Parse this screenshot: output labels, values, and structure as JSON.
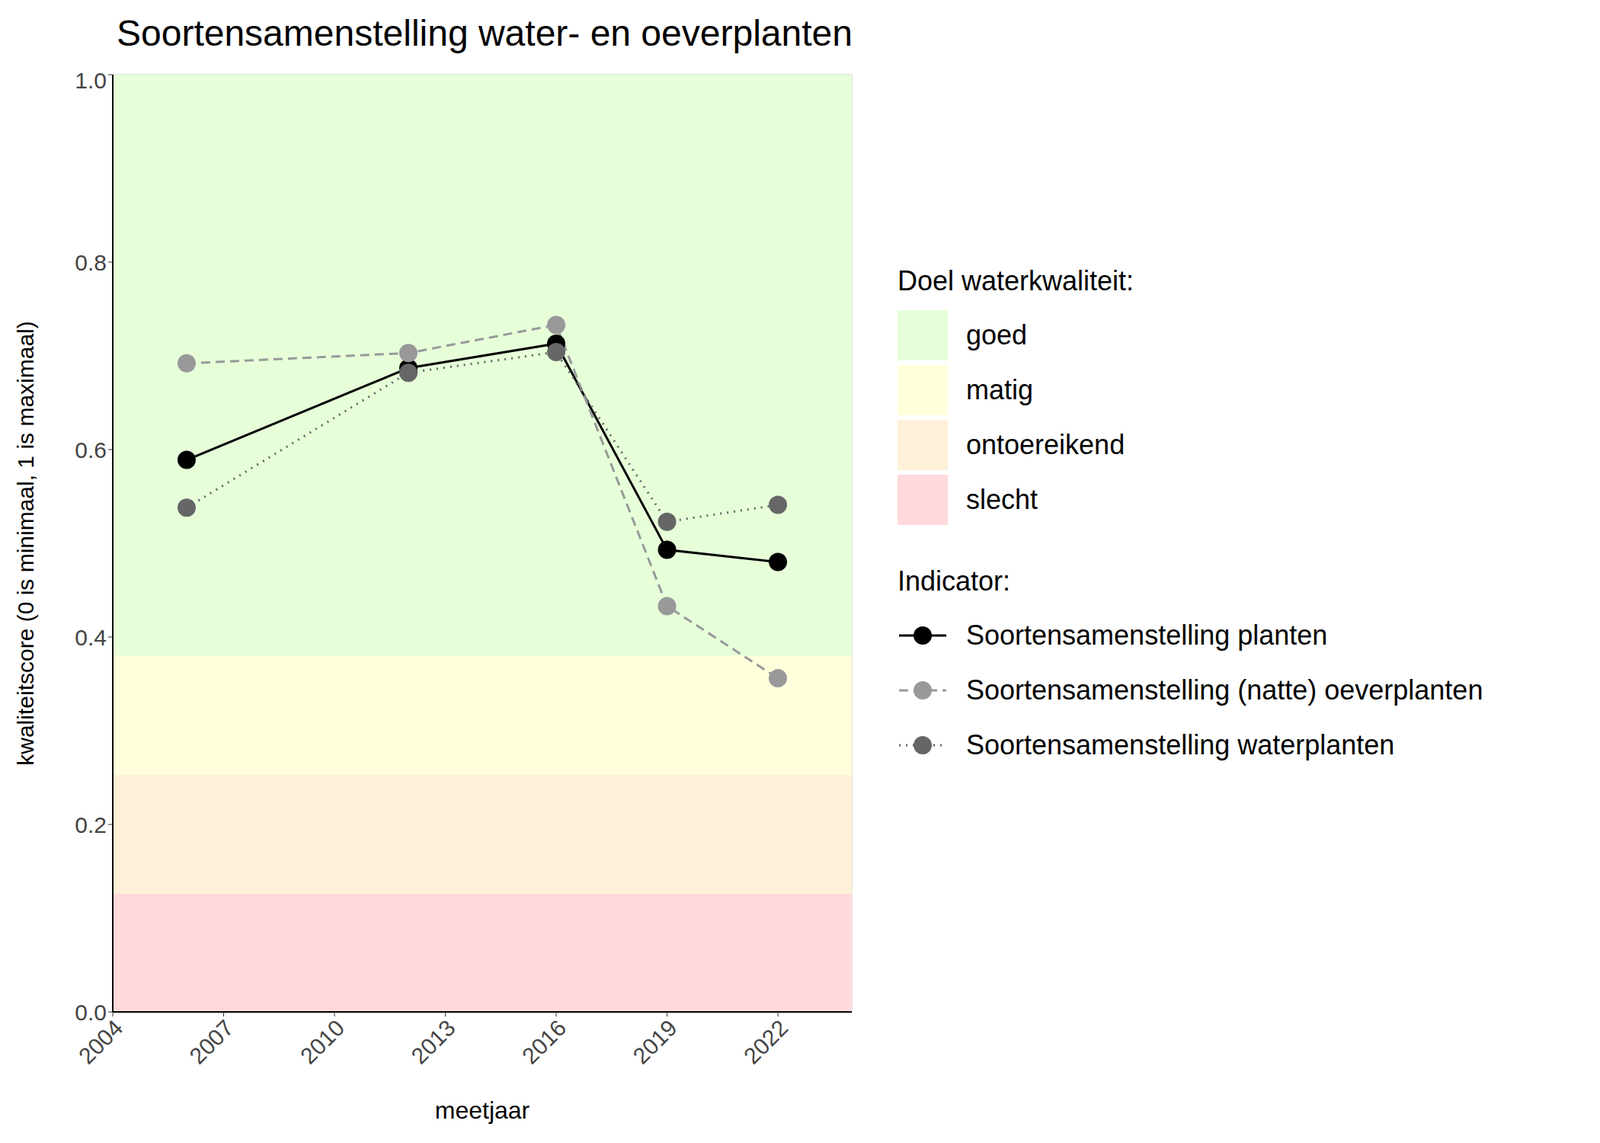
{
  "chart_data": {
    "type": "line",
    "title": "Soortensamenstelling water- en oeverplanten",
    "x_label": "meetjaar",
    "y_label": "kwaliteitscore (0 is minimaal, 1 is maximaal)",
    "x": [
      2006,
      2012,
      2016,
      2019,
      2022
    ],
    "series": [
      {
        "name": "Soortensamenstelling planten",
        "color": "#000000",
        "line_style": "solid",
        "marker": "circle",
        "values": [
          0.589,
          0.687,
          0.713,
          0.493,
          0.48
        ]
      },
      {
        "name": "Soortensamenstelling (natte) oeverplanten",
        "color": "#999999",
        "line_style": "dashed",
        "marker": "circle",
        "values": [
          0.692,
          0.703,
          0.733,
          0.433,
          0.356
        ]
      },
      {
        "name": "Soortensamenstelling waterplanten",
        "color": "#666666",
        "line_style": "dotted",
        "marker": "circle",
        "values": [
          0.538,
          0.682,
          0.704,
          0.523,
          0.541
        ]
      }
    ],
    "xlim": [
      2004,
      2024
    ],
    "xticks": [
      2004,
      2007,
      2010,
      2013,
      2016,
      2019,
      2022
    ],
    "ylim": [
      0,
      1
    ],
    "yticks": [
      {
        "value": 0,
        "label": "0.0"
      },
      {
        "value": 0.2,
        "label": "0.2"
      },
      {
        "value": 0.4,
        "label": "0.4"
      },
      {
        "value": 0.6,
        "label": "0.6"
      },
      {
        "value": 0.8,
        "label": "0.8"
      },
      {
        "value": 1,
        "label": "1.0"
      }
    ],
    "grid": true,
    "legend": "right",
    "legend_title": "Indicator:",
    "bands_title": "Doel waterkwaliteit:",
    "bands": [
      {
        "name": "goed",
        "from": 0.38,
        "to": 1,
        "color": "#e6ffd9"
      },
      {
        "name": "matig",
        "from": 0.253,
        "to": 0.38,
        "color": "#ffffdb"
      },
      {
        "name": "ontoereikend",
        "from": 0.126,
        "to": 0.253,
        "color": "#fff1d9"
      },
      {
        "name": "slecht",
        "from": 0,
        "to": 0.126,
        "color": "#ffd9db"
      }
    ]
  }
}
